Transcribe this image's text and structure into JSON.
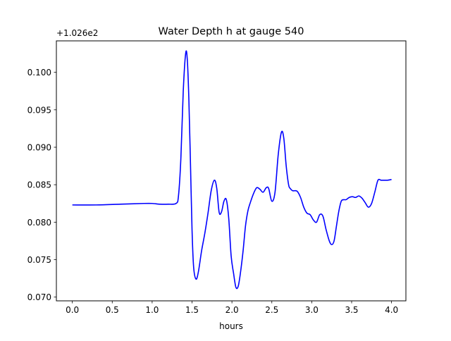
{
  "chart_data": {
    "type": "line",
    "title": "Water Depth h at gauge 540",
    "xlabel": "hours",
    "ylabel": "",
    "y_offset_label": "+1.026e2",
    "xlim": [
      -0.2,
      4.18
    ],
    "ylim": [
      0.0695,
      0.1042
    ],
    "x_ticks": [
      0.0,
      0.5,
      1.0,
      1.5,
      2.0,
      2.5,
      3.0,
      3.5,
      4.0
    ],
    "x_tick_labels": [
      "0.0",
      "0.5",
      "1.0",
      "1.5",
      "2.0",
      "2.5",
      "3.0",
      "3.5",
      "4.0"
    ],
    "y_ticks": [
      0.07,
      0.075,
      0.08,
      0.085,
      0.09,
      0.095,
      0.1
    ],
    "y_tick_labels": [
      "0.070",
      "0.075",
      "0.080",
      "0.085",
      "0.090",
      "0.095",
      "0.100"
    ],
    "grid": false,
    "legend": "none",
    "series": [
      {
        "color": "#0000ff",
        "x": [
          0.0,
          0.3,
          0.6,
          0.9,
          1.0,
          1.1,
          1.2,
          1.3,
          1.33,
          1.36,
          1.39,
          1.42,
          1.44,
          1.46,
          1.48,
          1.5,
          1.52,
          1.55,
          1.58,
          1.62,
          1.66,
          1.7,
          1.74,
          1.78,
          1.81,
          1.84,
          1.87,
          1.9,
          1.93,
          1.96,
          1.99,
          2.02,
          2.05,
          2.08,
          2.11,
          2.14,
          2.17,
          2.2,
          2.23,
          2.27,
          2.31,
          2.35,
          2.39,
          2.43,
          2.46,
          2.5,
          2.54,
          2.58,
          2.62,
          2.65,
          2.68,
          2.71,
          2.73,
          2.76,
          2.79,
          2.82,
          2.86,
          2.9,
          2.94,
          2.98,
          3.02,
          3.06,
          3.1,
          3.14,
          3.18,
          3.22,
          3.25,
          3.28,
          3.31,
          3.34,
          3.37,
          3.4,
          3.43,
          3.47,
          3.51,
          3.55,
          3.59,
          3.63,
          3.67,
          3.71,
          3.75,
          3.79,
          3.83,
          3.87,
          3.91,
          3.95,
          4.0
        ],
        "y": [
          0.0823,
          0.0823,
          0.0824,
          0.0825,
          0.0825,
          0.0824,
          0.0824,
          0.0825,
          0.0835,
          0.0885,
          0.0975,
          0.1025,
          0.1018,
          0.0965,
          0.088,
          0.079,
          0.074,
          0.0724,
          0.0734,
          0.0762,
          0.0785,
          0.0812,
          0.0842,
          0.0856,
          0.0845,
          0.0813,
          0.0814,
          0.0828,
          0.083,
          0.0805,
          0.0755,
          0.0732,
          0.0713,
          0.0715,
          0.0735,
          0.0762,
          0.0795,
          0.0815,
          0.0826,
          0.0838,
          0.0846,
          0.0844,
          0.084,
          0.0846,
          0.0845,
          0.0828,
          0.084,
          0.089,
          0.092,
          0.0912,
          0.0875,
          0.085,
          0.0845,
          0.0842,
          0.0842,
          0.0841,
          0.0833,
          0.082,
          0.0812,
          0.081,
          0.0803,
          0.08,
          0.081,
          0.0808,
          0.079,
          0.0775,
          0.077,
          0.0775,
          0.0795,
          0.0815,
          0.0828,
          0.083,
          0.083,
          0.0833,
          0.0834,
          0.0833,
          0.0835,
          0.0832,
          0.0826,
          0.082,
          0.0825,
          0.084,
          0.0856,
          0.0856,
          0.0856,
          0.0856,
          0.0857
        ]
      }
    ]
  }
}
